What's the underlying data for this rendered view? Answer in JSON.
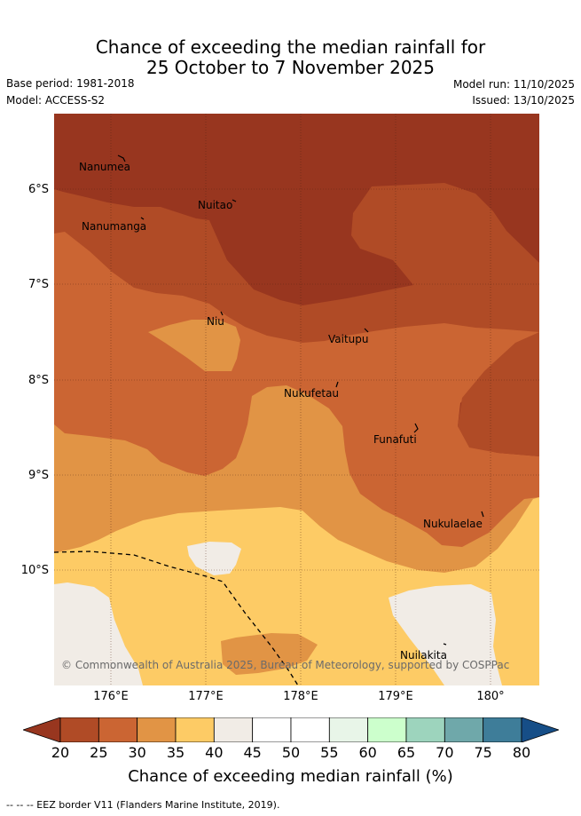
{
  "title_line1": "Chance of exceeding the median rainfall for",
  "title_line2": "25 October to 7 November 2025",
  "base_period": "Base period: 1981-2018",
  "model": "Model: ACCESS-S2",
  "model_run": "Model run: 11/10/2025",
  "issued": "Issued: 13/10/2025",
  "copyright": "© Commonwealth of Australia 2025, Bureau of Meteorology, supported by COSPPac",
  "y_ticks": [
    "6°S",
    "7°S",
    "8°S",
    "9°S",
    "10°S"
  ],
  "x_ticks": [
    "176°E",
    "177°E",
    "178°E",
    "179°E",
    "180°"
  ],
  "places": [
    "Nanumea",
    "Nuitao",
    "Nanumanga",
    "Niu",
    "Vaitupu",
    "Nukufetau",
    "Funafuti",
    "Nukulaelae",
    "Nuilakita"
  ],
  "colorbar": {
    "ticks": [
      "20",
      "25",
      "30",
      "35",
      "40",
      "45",
      "50",
      "55",
      "60",
      "65",
      "70",
      "75",
      "80"
    ],
    "colors": [
      "#98361f",
      "#b04b26",
      "#cb6533",
      "#e19445",
      "#fdcb65",
      "#f1ece6",
      "#ffffff",
      "#ffffff",
      "#e8f5e8",
      "#ccffcc",
      "#9dd4bd",
      "#6fa8aa",
      "#3e7d99",
      "#164e87"
    ],
    "title": "Chance of exceeding median rainfall (%)"
  },
  "footer": "-- -- -- EEZ border V11 (Flanders Marine Institute, 2019)."
}
